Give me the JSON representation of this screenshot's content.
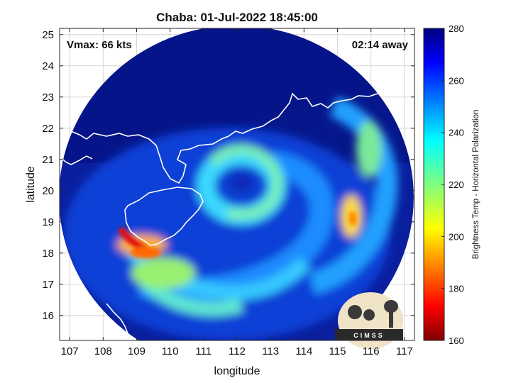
{
  "chart_data": {
    "type": "heatmap",
    "title": "Chaba: 01-Jul-2022 18:45:00",
    "xlabel": "longitude",
    "ylabel": "latitude",
    "xlim": [
      106.7,
      117.3
    ],
    "ylim": [
      15.2,
      25.2
    ],
    "xticks": [
      107,
      108,
      109,
      110,
      111,
      112,
      113,
      114,
      115,
      116,
      117
    ],
    "yticks": [
      16,
      17,
      18,
      19,
      20,
      21,
      22,
      23,
      24,
      25
    ],
    "grid": true,
    "annotations": {
      "vmax": "Vmax: 66 kts",
      "away": "02:14 away"
    },
    "colorbar": {
      "label": "Brightness Temp - Horizontal Polarization",
      "range": [
        160,
        280
      ],
      "ticks": [
        160,
        180,
        200,
        220,
        240,
        260,
        280
      ],
      "colormap": "jet"
    },
    "storm_center": {
      "lon": 111.8,
      "lat": 20.1
    },
    "swath_center": {
      "lon": 111.9,
      "lat": 19.3
    }
  },
  "logo": {
    "text": "CIMSS"
  },
  "colors": {
    "background_ocean": "#06178c",
    "coastline": "#ffffff",
    "grid": "#d6d6d6"
  }
}
